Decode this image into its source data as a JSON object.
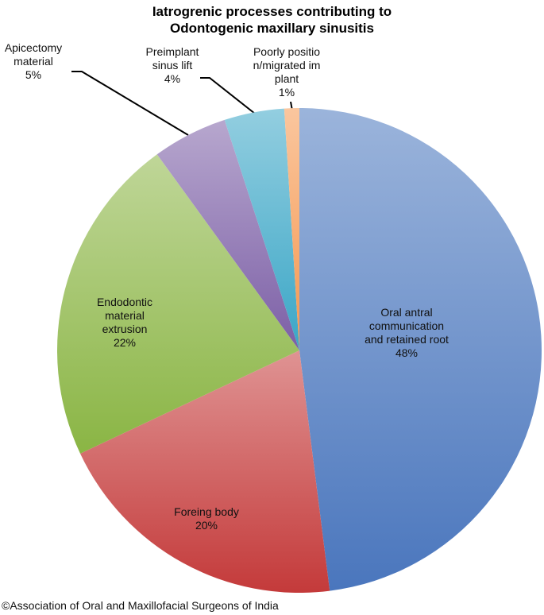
{
  "chart_data": {
    "type": "pie",
    "title": "Iatrogrenic processes contributing to Odontogenic maxillary sinusitis",
    "categories": [
      "Oral antral communication and retained root",
      "Foreing body",
      "Endodontic material extrusion",
      "Apicectomy material",
      "Preimplant sinus lift",
      "Poorly position/migrated implant"
    ],
    "values": [
      48,
      20,
      22,
      5,
      4,
      1
    ],
    "value_labels": [
      "48%",
      "20%",
      "22%",
      "5%",
      "4%",
      "1%"
    ],
    "colors": [
      "#4a76bd",
      "#c43a3a",
      "#8ab544",
      "#7c5fa6",
      "#3aa6c6",
      "#f5974f"
    ],
    "source": "©Association of Oral and Maxillofacial Surgeons of India"
  }
}
